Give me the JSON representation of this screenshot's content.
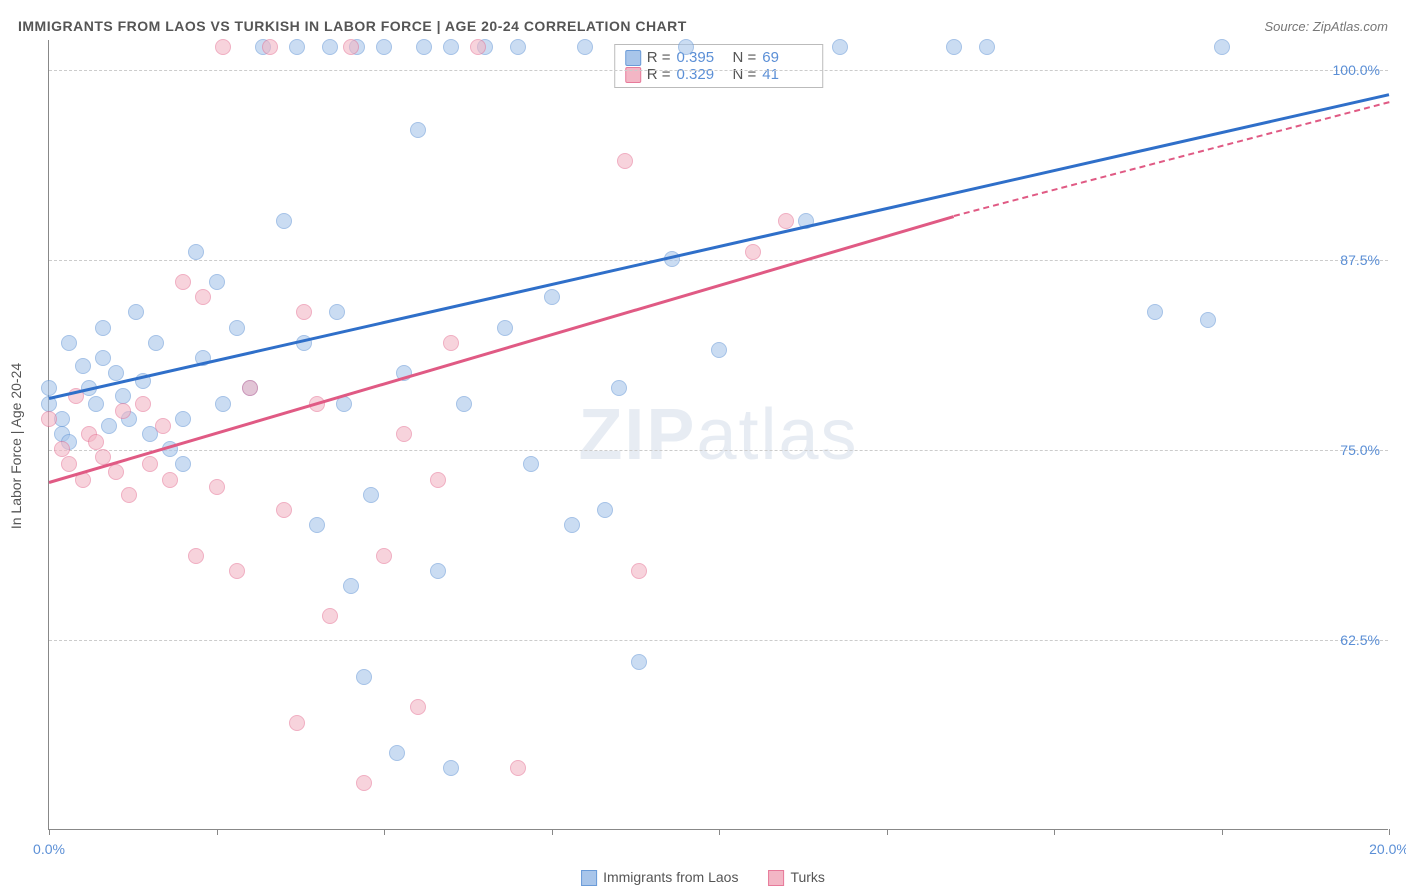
{
  "header": {
    "title": "IMMIGRANTS FROM LAOS VS TURKISH IN LABOR FORCE | AGE 20-24 CORRELATION CHART",
    "source_prefix": "Source: ",
    "source_name": "ZipAtlas.com"
  },
  "watermark": {
    "zip": "ZIP",
    "atlas": "atlas"
  },
  "chart": {
    "type": "scatter",
    "ylabel": "In Labor Force | Age 20-24",
    "background_color": "#ffffff",
    "grid_color": "#cccccc",
    "axis_color": "#888888",
    "tick_label_color": "#5b8fd6",
    "label_fontsize": 14,
    "title_fontsize": 14,
    "xlim": [
      0,
      20
    ],
    "ylim": [
      50,
      102
    ],
    "x_ticks": [
      0,
      2.5,
      5,
      7.5,
      10,
      12.5,
      15,
      17.5,
      20
    ],
    "x_tick_labels": {
      "0": "0.0%",
      "20": "20.0%"
    },
    "y_gridlines": [
      62.5,
      75,
      87.5,
      100
    ],
    "y_tick_labels": {
      "62.5": "62.5%",
      "75": "75.0%",
      "87.5": "87.5%",
      "100": "100.0%"
    },
    "marker_radius": 8,
    "marker_opacity": 0.6,
    "series": [
      {
        "key": "laos",
        "label": "Immigrants from Laos",
        "color_fill": "#a8c5ea",
        "color_stroke": "#6a9bd8",
        "r_value": "0.395",
        "n_value": "69",
        "trend": {
          "solid": {
            "x1": 0,
            "y1": 78.5,
            "x2": 20,
            "y2": 98.5
          },
          "color": "#2f6fc9",
          "width": 3
        },
        "points": [
          [
            0,
            79
          ],
          [
            0,
            78
          ],
          [
            0.2,
            77
          ],
          [
            0.2,
            76
          ],
          [
            0.3,
            75.5
          ],
          [
            0.3,
            82
          ],
          [
            0.5,
            80.5
          ],
          [
            0.6,
            79
          ],
          [
            0.7,
            78
          ],
          [
            0.8,
            81
          ],
          [
            0.8,
            83
          ],
          [
            0.9,
            76.5
          ],
          [
            1.0,
            80
          ],
          [
            1.1,
            78.5
          ],
          [
            1.2,
            77
          ],
          [
            1.3,
            84
          ],
          [
            1.4,
            79.5
          ],
          [
            1.5,
            76
          ],
          [
            1.6,
            82
          ],
          [
            1.8,
            75
          ],
          [
            2.0,
            74
          ],
          [
            2.0,
            77
          ],
          [
            2.2,
            88
          ],
          [
            2.3,
            81
          ],
          [
            2.5,
            86
          ],
          [
            2.6,
            78
          ],
          [
            2.8,
            83
          ],
          [
            3.0,
            79
          ],
          [
            3.2,
            101.5
          ],
          [
            3.5,
            90
          ],
          [
            3.7,
            101.5
          ],
          [
            3.8,
            82
          ],
          [
            4.0,
            70
          ],
          [
            4.2,
            101.5
          ],
          [
            4.3,
            84
          ],
          [
            4.5,
            66
          ],
          [
            4.6,
            101.5
          ],
          [
            4.7,
            60
          ],
          [
            4.8,
            72
          ],
          [
            5.0,
            101.5
          ],
          [
            5.3,
            80
          ],
          [
            5.5,
            96
          ],
          [
            5.6,
            101.5
          ],
          [
            5.8,
            67
          ],
          [
            6.0,
            101.5
          ],
          [
            6.0,
            54
          ],
          [
            6.2,
            78
          ],
          [
            6.5,
            101.5
          ],
          [
            6.8,
            83
          ],
          [
            7.0,
            101.5
          ],
          [
            7.2,
            74
          ],
          [
            7.5,
            85
          ],
          [
            7.8,
            70
          ],
          [
            8.0,
            101.5
          ],
          [
            8.3,
            71
          ],
          [
            8.5,
            79
          ],
          [
            8.8,
            61
          ],
          [
            9.3,
            87.5
          ],
          [
            9.5,
            101.5
          ],
          [
            10.0,
            81.5
          ],
          [
            11.3,
            90
          ],
          [
            11.8,
            101.5
          ],
          [
            14.0,
            101.5
          ],
          [
            13.5,
            101.5
          ],
          [
            16.5,
            84
          ],
          [
            17.3,
            83.5
          ],
          [
            17.5,
            101.5
          ],
          [
            5.2,
            55
          ],
          [
            4.4,
            78
          ]
        ]
      },
      {
        "key": "turks",
        "label": "Turks",
        "color_fill": "#f3b6c5",
        "color_stroke": "#e77a9a",
        "r_value": "0.329",
        "n_value": "41",
        "trend": {
          "solid": {
            "x1": 0,
            "y1": 73,
            "x2": 13.5,
            "y2": 90.5
          },
          "dashed": {
            "x1": 13.5,
            "y1": 90.5,
            "x2": 20,
            "y2": 98
          },
          "color": "#e05a84",
          "width": 3
        },
        "points": [
          [
            0,
            77
          ],
          [
            0.2,
            75
          ],
          [
            0.3,
            74
          ],
          [
            0.4,
            78.5
          ],
          [
            0.5,
            73
          ],
          [
            0.6,
            76
          ],
          [
            0.7,
            75.5
          ],
          [
            0.8,
            74.5
          ],
          [
            1.0,
            73.5
          ],
          [
            1.1,
            77.5
          ],
          [
            1.2,
            72
          ],
          [
            1.4,
            78
          ],
          [
            1.5,
            74
          ],
          [
            1.7,
            76.5
          ],
          [
            1.8,
            73
          ],
          [
            2.0,
            86
          ],
          [
            2.2,
            68
          ],
          [
            2.3,
            85
          ],
          [
            2.5,
            72.5
          ],
          [
            2.6,
            101.5
          ],
          [
            2.8,
            67
          ],
          [
            3.0,
            79
          ],
          [
            3.3,
            101.5
          ],
          [
            3.5,
            71
          ],
          [
            3.7,
            57
          ],
          [
            3.8,
            84
          ],
          [
            4.0,
            78
          ],
          [
            4.2,
            64
          ],
          [
            4.5,
            101.5
          ],
          [
            4.7,
            53
          ],
          [
            5.0,
            68
          ],
          [
            5.3,
            76
          ],
          [
            5.5,
            58
          ],
          [
            5.8,
            73
          ],
          [
            6.0,
            82
          ],
          [
            6.4,
            101.5
          ],
          [
            7.0,
            54
          ],
          [
            8.6,
            94
          ],
          [
            8.8,
            67
          ],
          [
            10.5,
            88
          ],
          [
            11.0,
            90
          ]
        ]
      }
    ],
    "legend_top_labels": {
      "r": "R =",
      "n": "N ="
    },
    "legend_bottom_position": "bottom-center"
  }
}
